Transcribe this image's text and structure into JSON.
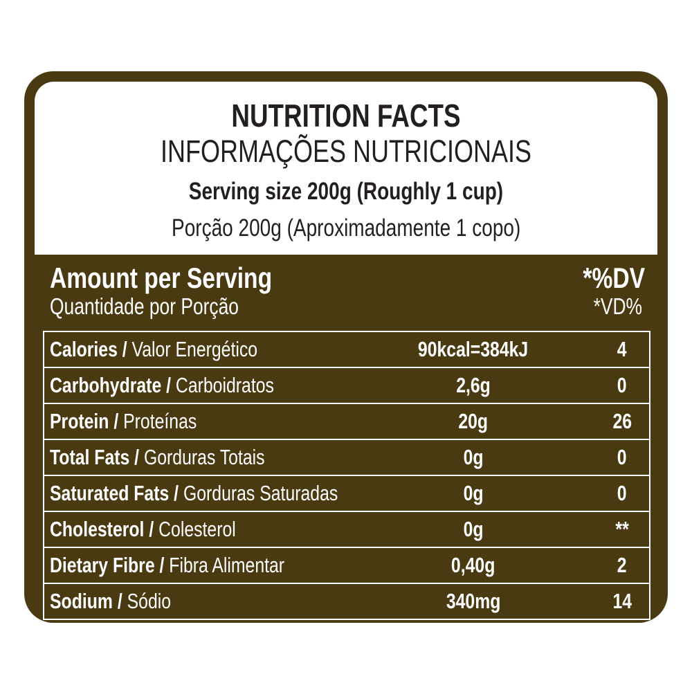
{
  "header": {
    "title": "NUTRITION FACTS",
    "title_pt": "INFORMAÇÕES NUTRICIONAIS",
    "serving": "Serving size 200g (Roughly 1 cup)",
    "serving_pt": "Porção 200g (Aproximadamente 1 copo)"
  },
  "table": {
    "head": {
      "amount": "Amount per Serving",
      "amount_pt": "Quantidade por Porção",
      "dv": "*%DV",
      "dv_pt": "*VD%"
    },
    "rows": [
      {
        "name": "Calories /",
        "name_pt": "Valor Energético",
        "amount": "90kcal=384kJ",
        "dv": "4"
      },
      {
        "name": "Carbohydrate /",
        "name_pt": "Carboidratos",
        "amount": "2,6g",
        "dv": "0"
      },
      {
        "name": "Protein /",
        "name_pt": "Proteínas",
        "amount": "20g",
        "dv": "26"
      },
      {
        "name": "Total Fats /",
        "name_pt": "Gorduras Totais",
        "amount": "0g",
        "dv": "0"
      },
      {
        "name": "Saturated Fats /",
        "name_pt": "Gorduras Saturadas",
        "amount": "0g",
        "dv": "0"
      },
      {
        "name": "Cholesterol /",
        "name_pt": "Colesterol",
        "amount": "0g",
        "dv": "**"
      },
      {
        "name": "Dietary Fibre /",
        "name_pt": "Fibra Alimentar",
        "amount": "0,40g",
        "dv": "2"
      },
      {
        "name": "Sodium /",
        "name_pt": "Sódio",
        "amount": "340mg",
        "dv": "14"
      }
    ]
  }
}
